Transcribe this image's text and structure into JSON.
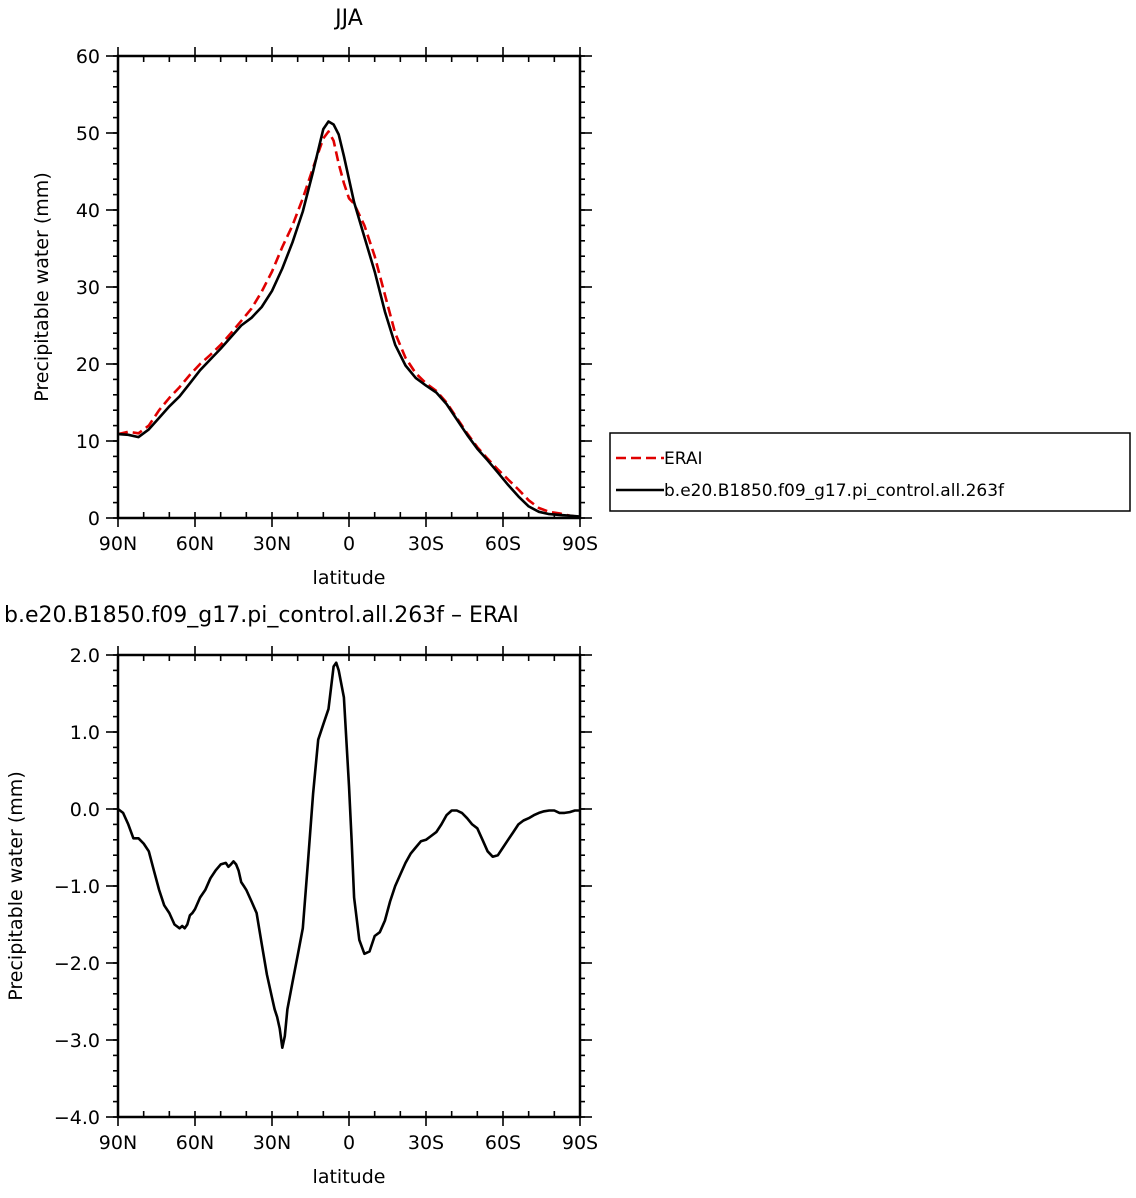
{
  "chart_data": [
    {
      "type": "line",
      "title": "JJA",
      "xlabel": "latitude",
      "ylabel": "Precipitable water (mm)",
      "xlim": [
        90,
        -90
      ],
      "ylim": [
        0,
        60
      ],
      "x_ticks": [
        90,
        60,
        30,
        0,
        -30,
        -60,
        -90
      ],
      "x_tick_labels": [
        "90N",
        "60N",
        "30N",
        "0",
        "30S",
        "60S",
        "90S"
      ],
      "y_ticks": [
        0,
        10,
        20,
        30,
        40,
        50,
        60
      ],
      "y_tick_labels": [
        "0",
        "10",
        "20",
        "30",
        "40",
        "50",
        "60"
      ],
      "legend": {
        "position": "right"
      },
      "series": [
        {
          "name": "ERAI",
          "color": "#e00000",
          "dash": "dashed",
          "x": [
            90,
            86,
            82,
            78,
            74,
            70,
            66,
            62,
            58,
            54,
            50,
            46,
            42,
            38,
            34,
            30,
            26,
            22,
            18,
            14,
            10,
            8,
            6,
            4,
            2,
            0,
            -2,
            -6,
            -10,
            -14,
            -18,
            -22,
            -26,
            -30,
            -34,
            -38,
            -42,
            -46,
            -50,
            -54,
            -58,
            -62,
            -66,
            -70,
            -74,
            -78,
            -82,
            -86,
            -90
          ],
          "values": [
            10.9,
            11.2,
            11.0,
            12.0,
            14.0,
            15.6,
            17.0,
            18.6,
            20.0,
            21.2,
            22.5,
            24.0,
            25.6,
            27.2,
            29.4,
            32.0,
            35.2,
            38.0,
            41.5,
            45.5,
            49.3,
            50.2,
            49.0,
            46.0,
            43.5,
            41.5,
            40.8,
            38.0,
            34.0,
            29.0,
            24.0,
            20.8,
            18.8,
            17.5,
            16.5,
            15.0,
            13.0,
            11.0,
            9.2,
            7.7,
            6.3,
            5.0,
            3.7,
            2.3,
            1.3,
            0.8,
            0.6,
            0.3,
            0.1
          ]
        },
        {
          "name": "b.e20.B1850.f09_g17.pi_control.all.263f",
          "color": "#000000",
          "dash": "solid",
          "x": [
            90,
            86,
            82,
            78,
            74,
            70,
            66,
            62,
            58,
            54,
            50,
            46,
            42,
            38,
            34,
            30,
            26,
            22,
            18,
            14,
            10,
            8,
            6,
            4,
            2,
            0,
            -2,
            -6,
            -10,
            -14,
            -18,
            -22,
            -26,
            -30,
            -34,
            -38,
            -42,
            -46,
            -50,
            -54,
            -58,
            -62,
            -66,
            -70,
            -74,
            -78,
            -82,
            -86,
            -90
          ],
          "values": [
            10.9,
            10.8,
            10.5,
            11.5,
            13.0,
            14.5,
            15.8,
            17.5,
            19.2,
            20.6,
            22.0,
            23.5,
            25.0,
            26.0,
            27.4,
            29.5,
            32.4,
            35.8,
            39.8,
            45.0,
            50.5,
            51.5,
            51.1,
            49.8,
            47.0,
            44.0,
            41.0,
            36.5,
            32.0,
            26.8,
            22.5,
            19.8,
            18.2,
            17.2,
            16.3,
            14.8,
            12.8,
            10.8,
            9.0,
            7.5,
            5.9,
            4.3,
            2.8,
            1.5,
            0.8,
            0.5,
            0.4,
            0.3,
            0.2
          ]
        }
      ]
    },
    {
      "type": "line",
      "title": "b.e20.B1850.f09_g17.pi_control.all.263f – ERAI",
      "xlabel": "latitude",
      "ylabel": "Precipitable water (mm)",
      "xlim": [
        90,
        -90
      ],
      "ylim": [
        -4.0,
        2.0
      ],
      "x_ticks": [
        90,
        60,
        30,
        0,
        -30,
        -60,
        -90
      ],
      "x_tick_labels": [
        "90N",
        "60N",
        "30N",
        "0",
        "30S",
        "60S",
        "90S"
      ],
      "y_ticks": [
        2.0,
        1.0,
        0.0,
        -1.0,
        -2.0,
        -3.0,
        -4.0
      ],
      "y_tick_labels": [
        "2.0",
        "1.0",
        "0.0",
        "−1.0",
        "−2.0",
        "−3.0",
        "−4.0"
      ],
      "series": [
        {
          "color": "#000000",
          "dash": "solid",
          "x": [
            90,
            88,
            86,
            84,
            82,
            80,
            78,
            76,
            74,
            72,
            70,
            68,
            66,
            65,
            64,
            63,
            62,
            61,
            60,
            58,
            56,
            54,
            52,
            50,
            48,
            47,
            46,
            45,
            44,
            43,
            42,
            41,
            40,
            38,
            36,
            34,
            32,
            30,
            29,
            28,
            27,
            26,
            25,
            24,
            22,
            20,
            18,
            16,
            14,
            12,
            10,
            8,
            6,
            5,
            4,
            2,
            0,
            -1,
            -2,
            -4,
            -6,
            -8,
            -10,
            -12,
            -14,
            -16,
            -18,
            -20,
            -22,
            -24,
            -26,
            -28,
            -30,
            -32,
            -34,
            -36,
            -38,
            -40,
            -42,
            -44,
            -46,
            -48,
            -50,
            -52,
            -54,
            -56,
            -58,
            -60,
            -62,
            -64,
            -66,
            -68,
            -70,
            -72,
            -74,
            -76,
            -78,
            -80,
            -82,
            -84,
            -86,
            -88,
            -90
          ],
          "values": [
            0.0,
            -0.05,
            -0.2,
            -0.38,
            -0.38,
            -0.45,
            -0.55,
            -0.8,
            -1.05,
            -1.25,
            -1.35,
            -1.5,
            -1.55,
            -1.52,
            -1.55,
            -1.5,
            -1.38,
            -1.35,
            -1.3,
            -1.15,
            -1.05,
            -0.9,
            -0.8,
            -0.72,
            -0.7,
            -0.75,
            -0.72,
            -0.68,
            -0.72,
            -0.8,
            -0.95,
            -1.0,
            -1.05,
            -1.2,
            -1.35,
            -1.75,
            -2.15,
            -2.45,
            -2.6,
            -2.7,
            -2.85,
            -3.1,
            -2.95,
            -2.6,
            -2.25,
            -1.9,
            -1.55,
            -0.7,
            0.2,
            0.9,
            1.1,
            1.3,
            1.85,
            1.9,
            1.8,
            1.45,
            0.3,
            -0.4,
            -1.15,
            -1.7,
            -1.88,
            -1.85,
            -1.65,
            -1.6,
            -1.45,
            -1.2,
            -1.0,
            -0.85,
            -0.7,
            -0.58,
            -0.5,
            -0.42,
            -0.4,
            -0.35,
            -0.3,
            -0.2,
            -0.08,
            -0.02,
            -0.02,
            -0.05,
            -0.12,
            -0.2,
            -0.25,
            -0.4,
            -0.55,
            -0.62,
            -0.6,
            -0.5,
            -0.4,
            -0.3,
            -0.2,
            -0.15,
            -0.12,
            -0.08,
            -0.05,
            -0.03,
            -0.02,
            -0.02,
            -0.05,
            -0.05,
            -0.04,
            -0.02,
            -0.02
          ]
        }
      ]
    }
  ]
}
